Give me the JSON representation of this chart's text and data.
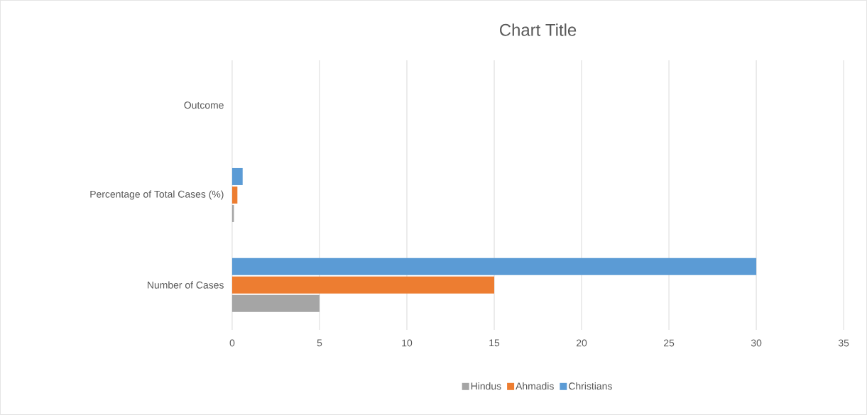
{
  "chart_data": {
    "type": "bar",
    "orientation": "horizontal",
    "title": "Chart Title",
    "categories": [
      "Outcome",
      "Percentage of Total Cases (%)",
      "Number of Cases"
    ],
    "series": [
      {
        "name": "Hindus",
        "color": "#a5a5a5",
        "values": [
          null,
          0.1,
          5
        ]
      },
      {
        "name": "Ahmadis",
        "color": "#ed7d31",
        "values": [
          null,
          0.3,
          15
        ]
      },
      {
        "name": "Christians",
        "color": "#5b9bd5",
        "values": [
          null,
          0.6,
          30
        ]
      }
    ],
    "xlim": [
      0,
      35
    ],
    "xticks": [
      0,
      5,
      10,
      15,
      20,
      25,
      30,
      35
    ],
    "grid": "x",
    "legend": "bottom"
  }
}
